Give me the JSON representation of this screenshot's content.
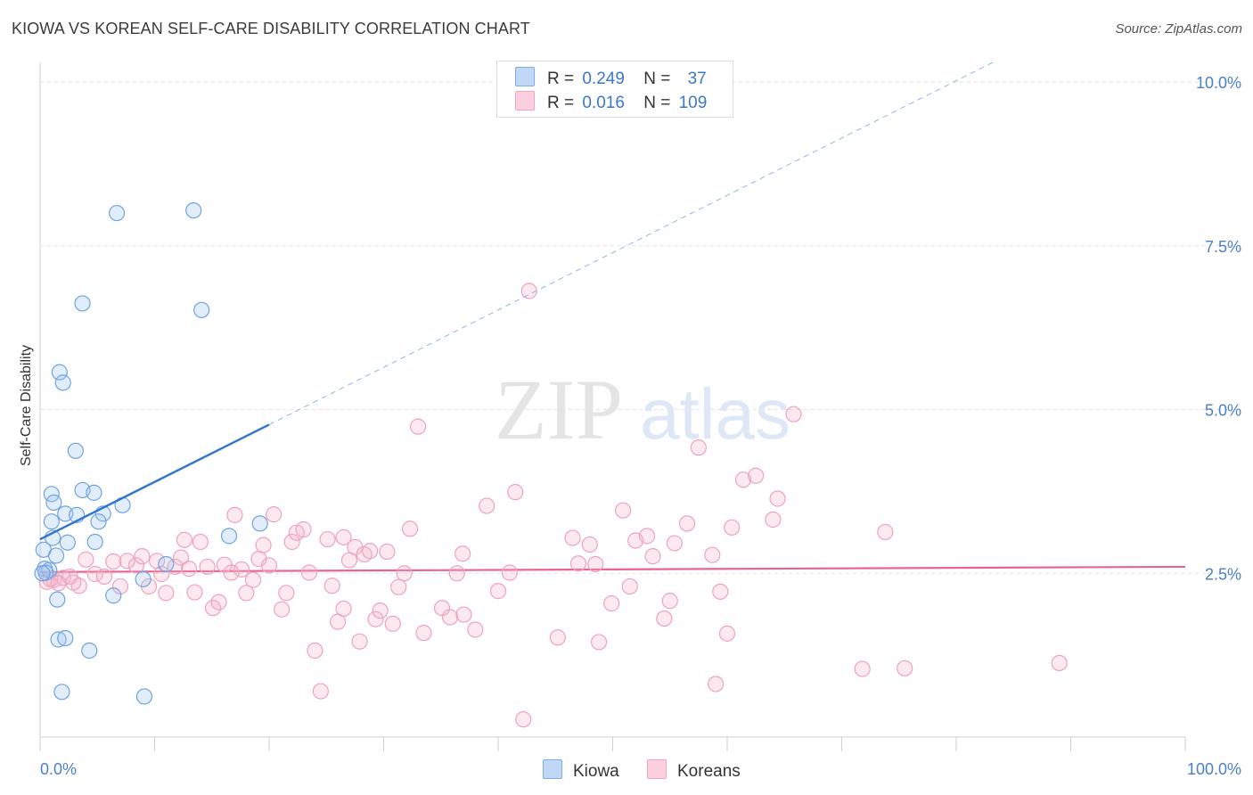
{
  "title": "KIOWA VS KOREAN SELF-CARE DISABILITY CORRELATION CHART",
  "source": "Source: ZipAtlas.com",
  "watermark": {
    "zip": "ZIP",
    "atlas": "atlas"
  },
  "legend": {
    "rows": [
      {
        "r_label": "R =",
        "r_value": "0.249",
        "n_label": "N =",
        "n_value": "37"
      },
      {
        "r_label": "R =",
        "r_value": "0.016",
        "n_label": "N =",
        "n_value": "109"
      }
    ]
  },
  "chart_data": {
    "type": "scatter",
    "title": "KIOWA VS KOREAN SELF-CARE DISABILITY CORRELATION CHART",
    "ylabel": "Self-Care Disability",
    "xlabel": "",
    "xlim": [
      0,
      100
    ],
    "ylim": [
      0,
      10.3
    ],
    "x_ticks": [
      "0.0%",
      "100.0%"
    ],
    "y_ticks": [
      {
        "value": 2.5,
        "label": "2.5%"
      },
      {
        "value": 5.0,
        "label": "5.0%"
      },
      {
        "value": 7.5,
        "label": "7.5%"
      },
      {
        "value": 10.0,
        "label": "10.0%"
      }
    ],
    "legend_placement": "bottom",
    "colors": {
      "kiowa": "#7aaee8",
      "kiowa_line": "#2f74d0",
      "koreans": "#f2a3bf",
      "koreans_line": "#e8648f"
    },
    "series": [
      {
        "name": "Kiowa",
        "r": 0.249,
        "n": 37,
        "trend": {
          "x0": 0,
          "y0": 3.02,
          "x1": 20,
          "y1": 4.77,
          "dash_to_x": 100
        },
        "points": [
          [
            6.7,
            8.0
          ],
          [
            13.4,
            8.04
          ],
          [
            3.7,
            6.62
          ],
          [
            14.1,
            6.52
          ],
          [
            1.7,
            5.57
          ],
          [
            2.0,
            5.41
          ],
          [
            3.1,
            4.37
          ],
          [
            1.0,
            3.71
          ],
          [
            3.7,
            3.77
          ],
          [
            4.7,
            3.73
          ],
          [
            1.2,
            3.58
          ],
          [
            7.2,
            3.54
          ],
          [
            2.2,
            3.41
          ],
          [
            3.2,
            3.39
          ],
          [
            5.5,
            3.41
          ],
          [
            1.0,
            3.29
          ],
          [
            5.1,
            3.29
          ],
          [
            19.2,
            3.26
          ],
          [
            16.5,
            3.07
          ],
          [
            1.1,
            3.04
          ],
          [
            2.4,
            2.97
          ],
          [
            4.8,
            2.98
          ],
          [
            0.3,
            2.86
          ],
          [
            1.4,
            2.77
          ],
          [
            0.4,
            2.57
          ],
          [
            0.8,
            2.55
          ],
          [
            0.5,
            2.51
          ],
          [
            0.2,
            2.5
          ],
          [
            11.0,
            2.64
          ],
          [
            9.0,
            2.41
          ],
          [
            1.5,
            2.1
          ],
          [
            6.4,
            2.16
          ],
          [
            1.6,
            1.49
          ],
          [
            2.2,
            1.51
          ],
          [
            4.3,
            1.32
          ],
          [
            1.9,
            0.69
          ],
          [
            9.1,
            0.62
          ]
        ]
      },
      {
        "name": "Koreans",
        "r": 0.016,
        "n": 109,
        "trend": {
          "x0": 0,
          "y0": 2.52,
          "x1": 100,
          "y1": 2.6
        },
        "points": [
          [
            0.6,
            2.37
          ],
          [
            1.2,
            2.4
          ],
          [
            2.0,
            2.43
          ],
          [
            2.6,
            2.45
          ],
          [
            3.4,
            2.31
          ],
          [
            4.0,
            2.71
          ],
          [
            4.8,
            2.49
          ],
          [
            5.6,
            2.45
          ],
          [
            6.4,
            2.68
          ],
          [
            7.0,
            2.3
          ],
          [
            7.6,
            2.69
          ],
          [
            8.4,
            2.62
          ],
          [
            8.9,
            2.76
          ],
          [
            9.5,
            2.3
          ],
          [
            10.2,
            2.69
          ],
          [
            10.6,
            2.49
          ],
          [
            11.0,
            2.2
          ],
          [
            11.8,
            2.6
          ],
          [
            12.3,
            2.74
          ],
          [
            12.6,
            3.01
          ],
          [
            13.0,
            2.57
          ],
          [
            13.5,
            2.21
          ],
          [
            14.0,
            2.98
          ],
          [
            14.6,
            2.6
          ],
          [
            15.1,
            1.97
          ],
          [
            15.6,
            2.06
          ],
          [
            16.1,
            2.63
          ],
          [
            16.7,
            2.51
          ],
          [
            17.0,
            3.39
          ],
          [
            17.6,
            2.56
          ],
          [
            18.0,
            2.2
          ],
          [
            18.6,
            2.4
          ],
          [
            19.1,
            2.72
          ],
          [
            19.5,
            2.93
          ],
          [
            20.0,
            2.62
          ],
          [
            20.4,
            3.4
          ],
          [
            21.1,
            1.95
          ],
          [
            21.5,
            2.2
          ],
          [
            22.0,
            2.98
          ],
          [
            22.4,
            3.12
          ],
          [
            23.0,
            3.17
          ],
          [
            23.5,
            2.51
          ],
          [
            24.0,
            1.32
          ],
          [
            24.5,
            0.7
          ],
          [
            25.1,
            3.02
          ],
          [
            25.5,
            2.31
          ],
          [
            26.0,
            1.76
          ],
          [
            26.5,
            1.96
          ],
          [
            27.0,
            2.7
          ],
          [
            27.5,
            2.9
          ],
          [
            27.9,
            1.46
          ],
          [
            28.3,
            2.79
          ],
          [
            28.8,
            2.84
          ],
          [
            29.3,
            1.8
          ],
          [
            29.7,
            1.93
          ],
          [
            30.3,
            2.83
          ],
          [
            30.8,
            1.73
          ],
          [
            31.3,
            2.29
          ],
          [
            31.8,
            2.5
          ],
          [
            32.3,
            3.18
          ],
          [
            33.0,
            4.74
          ],
          [
            33.5,
            1.59
          ],
          [
            35.1,
            1.97
          ],
          [
            35.8,
            1.83
          ],
          [
            36.4,
            2.5
          ],
          [
            36.9,
            2.8
          ],
          [
            37.0,
            1.87
          ],
          [
            38.0,
            1.64
          ],
          [
            39.0,
            3.53
          ],
          [
            40.0,
            2.23
          ],
          [
            41.0,
            2.51
          ],
          [
            41.5,
            3.74
          ],
          [
            42.2,
            0.27
          ],
          [
            42.7,
            6.81
          ],
          [
            45.2,
            1.52
          ],
          [
            46.5,
            3.04
          ],
          [
            47.0,
            2.65
          ],
          [
            48.0,
            2.94
          ],
          [
            48.5,
            2.64
          ],
          [
            48.8,
            1.45
          ],
          [
            49.9,
            2.04
          ],
          [
            50.9,
            3.46
          ],
          [
            51.5,
            2.3
          ],
          [
            52.0,
            3.0
          ],
          [
            53.0,
            3.07
          ],
          [
            53.5,
            2.76
          ],
          [
            54.5,
            1.81
          ],
          [
            55.0,
            2.08
          ],
          [
            55.4,
            2.96
          ],
          [
            56.5,
            3.26
          ],
          [
            57.5,
            4.42
          ],
          [
            58.7,
            2.78
          ],
          [
            59.0,
            0.81
          ],
          [
            59.4,
            2.22
          ],
          [
            60.0,
            1.58
          ],
          [
            60.4,
            3.2
          ],
          [
            61.4,
            3.93
          ],
          [
            62.5,
            3.99
          ],
          [
            64.0,
            3.32
          ],
          [
            64.4,
            3.64
          ],
          [
            65.8,
            4.93
          ],
          [
            71.8,
            1.04
          ],
          [
            73.8,
            3.13
          ],
          [
            75.5,
            1.05
          ],
          [
            89.0,
            1.13
          ],
          [
            0.9,
            2.41
          ],
          [
            1.6,
            2.35
          ],
          [
            2.9,
            2.36
          ],
          [
            26.5,
            3.05
          ]
        ]
      }
    ]
  }
}
